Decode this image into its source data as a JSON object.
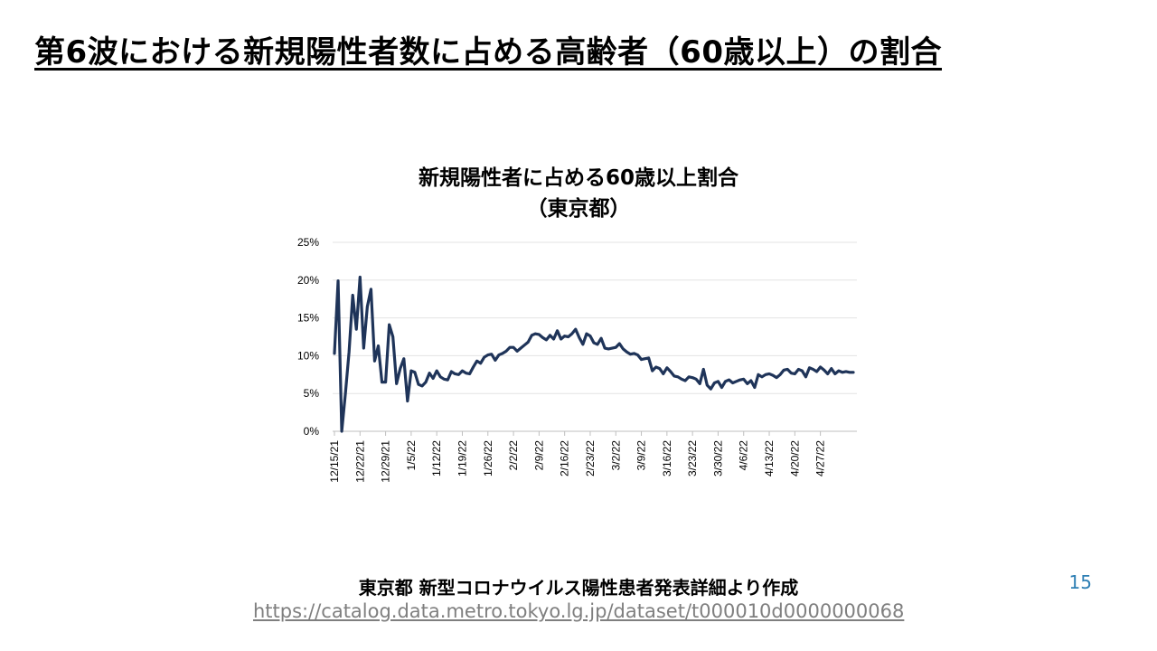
{
  "slide": {
    "title": "第6波における新規陽性者数に占める高齢者（60歳以上）の割合",
    "source": "東京都 新型コロナウイルス陽性患者発表詳細より作成",
    "link": "https://catalog.data.metro.tokyo.lg.jp/dataset/t000010d0000000068",
    "page_number": "15"
  },
  "chart_data": {
    "type": "line",
    "title_line1": "新規陽性者に占める60歳以上割合",
    "title_line2": "（東京都）",
    "xlabel": "",
    "ylabel": "",
    "ylim": [
      0,
      25
    ],
    "y_ticks": [
      "0%",
      "5%",
      "10%",
      "15%",
      "20%",
      "25%"
    ],
    "x_tick_labels": [
      "12/15/21",
      "12/22/21",
      "12/29/21",
      "1/5/22",
      "1/12/22",
      "1/19/22",
      "1/26/22",
      "2/2/22",
      "2/9/22",
      "2/16/22",
      "2/23/22",
      "3/2/22",
      "3/9/22",
      "3/16/22",
      "3/23/22",
      "3/30/22",
      "4/6/22",
      "4/13/22",
      "4/20/22",
      "4/27/22"
    ],
    "grid": true,
    "line_color": "#1f3459",
    "series": [
      {
        "values": [
          10.3,
          19.9,
          0,
          5.0,
          10.5,
          18.0,
          13.5,
          20.4,
          11.0,
          16.5,
          18.8,
          9.3,
          11.3,
          6.5,
          6.5,
          14.1,
          12.5,
          6.3,
          8.3,
          9.6,
          4.0,
          8.0,
          7.8,
          6.2,
          6.0,
          6.5,
          7.7,
          7.0,
          8.0,
          7.2,
          6.9,
          6.8,
          7.9,
          7.6,
          7.5,
          8.0,
          7.7,
          7.6,
          8.5,
          9.3,
          9.0,
          9.8,
          10.1,
          10.2,
          9.4,
          10.1,
          10.3,
          10.6,
          11.1,
          11.1,
          10.6,
          11.0,
          11.4,
          11.8,
          12.7,
          12.9,
          12.8,
          12.4,
          12.1,
          12.7,
          12.2,
          13.3,
          12.2,
          12.6,
          12.5,
          12.9,
          13.5,
          12.4,
          11.5,
          12.9,
          12.6,
          11.7,
          11.5,
          12.3,
          11.0,
          10.9,
          11.0,
          11.1,
          11.6,
          10.9,
          10.5,
          10.2,
          10.3,
          10.1,
          9.5,
          9.6,
          9.7,
          8.0,
          8.5,
          8.3,
          7.6,
          8.4,
          7.9,
          7.3,
          7.2,
          6.9,
          6.7,
          7.2,
          7.1,
          6.9,
          6.3,
          8.2,
          6.1,
          5.6,
          6.4,
          6.6,
          5.8,
          6.6,
          6.8,
          6.4,
          6.6,
          6.8,
          6.9,
          6.3,
          6.7,
          5.8,
          7.5,
          7.2,
          7.5,
          7.6,
          7.4,
          7.1,
          7.5,
          8.1,
          8.2,
          7.7,
          7.6,
          8.2,
          8.0,
          7.2,
          8.4,
          8.2,
          7.9,
          8.5,
          8.1,
          7.6,
          8.3,
          7.6,
          8.0,
          7.8,
          7.9,
          7.8,
          7.8
        ]
      }
    ]
  }
}
